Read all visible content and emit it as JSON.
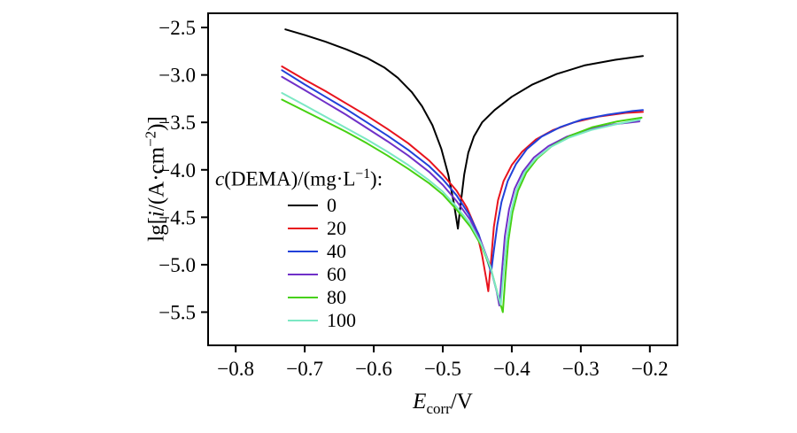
{
  "chart_data": {
    "type": "line",
    "title": "",
    "xlabel": "E_corr/V",
    "ylabel": "lg[i/(A·cm−2)]",
    "legend_title": "c(DEMA)/(mg·L−1):",
    "legend_position": "inside-left",
    "grid": false,
    "xlim": [
      -0.84,
      -0.16
    ],
    "ylim": [
      -5.85,
      -2.35
    ],
    "x_ticks": [
      -0.8,
      -0.7,
      -0.6,
      -0.5,
      -0.4,
      -0.3,
      -0.2
    ],
    "y_ticks": [
      -2.5,
      -3.0,
      -3.5,
      -4.0,
      -4.5,
      -5.0,
      -5.5
    ],
    "series": [
      {
        "name": "0",
        "color": "#000000",
        "points": [
          [
            -0.728,
            -2.52
          ],
          [
            -0.7,
            -2.58
          ],
          [
            -0.67,
            -2.65
          ],
          [
            -0.64,
            -2.73
          ],
          [
            -0.61,
            -2.82
          ],
          [
            -0.585,
            -2.92
          ],
          [
            -0.565,
            -3.03
          ],
          [
            -0.545,
            -3.18
          ],
          [
            -0.53,
            -3.33
          ],
          [
            -0.515,
            -3.53
          ],
          [
            -0.502,
            -3.78
          ],
          [
            -0.492,
            -4.05
          ],
          [
            -0.484,
            -4.35
          ],
          [
            -0.478,
            -4.62
          ],
          [
            -0.474,
            -4.35
          ],
          [
            -0.469,
            -4.05
          ],
          [
            -0.463,
            -3.82
          ],
          [
            -0.455,
            -3.65
          ],
          [
            -0.443,
            -3.5
          ],
          [
            -0.425,
            -3.37
          ],
          [
            -0.4,
            -3.23
          ],
          [
            -0.37,
            -3.1
          ],
          [
            -0.335,
            -2.99
          ],
          [
            -0.295,
            -2.9
          ],
          [
            -0.25,
            -2.84
          ],
          [
            -0.21,
            -2.8
          ]
        ]
      },
      {
        "name": "20",
        "color": "#e8131d",
        "points": [
          [
            -0.733,
            -2.91
          ],
          [
            -0.7,
            -3.05
          ],
          [
            -0.67,
            -3.17
          ],
          [
            -0.64,
            -3.3
          ],
          [
            -0.61,
            -3.43
          ],
          [
            -0.58,
            -3.57
          ],
          [
            -0.55,
            -3.72
          ],
          [
            -0.52,
            -3.9
          ],
          [
            -0.5,
            -4.05
          ],
          [
            -0.48,
            -4.22
          ],
          [
            -0.465,
            -4.4
          ],
          [
            -0.452,
            -4.62
          ],
          [
            -0.443,
            -4.9
          ],
          [
            -0.437,
            -5.15
          ],
          [
            -0.434,
            -5.28
          ],
          [
            -0.43,
            -4.95
          ],
          [
            -0.426,
            -4.6
          ],
          [
            -0.42,
            -4.32
          ],
          [
            -0.412,
            -4.12
          ],
          [
            -0.4,
            -3.95
          ],
          [
            -0.385,
            -3.81
          ],
          [
            -0.365,
            -3.68
          ],
          [
            -0.34,
            -3.58
          ],
          [
            -0.31,
            -3.5
          ],
          [
            -0.275,
            -3.44
          ],
          [
            -0.235,
            -3.4
          ],
          [
            -0.21,
            -3.39
          ]
        ]
      },
      {
        "name": "40",
        "color": "#2141d9",
        "points": [
          [
            -0.733,
            -2.95
          ],
          [
            -0.7,
            -3.1
          ],
          [
            -0.67,
            -3.23
          ],
          [
            -0.64,
            -3.36
          ],
          [
            -0.61,
            -3.5
          ],
          [
            -0.58,
            -3.64
          ],
          [
            -0.55,
            -3.79
          ],
          [
            -0.52,
            -3.96
          ],
          [
            -0.5,
            -4.1
          ],
          [
            -0.48,
            -4.27
          ],
          [
            -0.462,
            -4.47
          ],
          [
            -0.448,
            -4.68
          ],
          [
            -0.438,
            -4.9
          ],
          [
            -0.43,
            -5.08
          ],
          [
            -0.426,
            -4.85
          ],
          [
            -0.421,
            -4.58
          ],
          [
            -0.415,
            -4.34
          ],
          [
            -0.406,
            -4.12
          ],
          [
            -0.394,
            -3.94
          ],
          [
            -0.378,
            -3.78
          ],
          [
            -0.357,
            -3.65
          ],
          [
            -0.33,
            -3.55
          ],
          [
            -0.298,
            -3.47
          ],
          [
            -0.262,
            -3.42
          ],
          [
            -0.225,
            -3.38
          ],
          [
            -0.21,
            -3.37
          ]
        ]
      },
      {
        "name": "60",
        "color": "#7030c8",
        "points": [
          [
            -0.733,
            -3.02
          ],
          [
            -0.7,
            -3.16
          ],
          [
            -0.67,
            -3.29
          ],
          [
            -0.64,
            -3.42
          ],
          [
            -0.61,
            -3.56
          ],
          [
            -0.58,
            -3.7
          ],
          [
            -0.55,
            -3.85
          ],
          [
            -0.52,
            -4.02
          ],
          [
            -0.5,
            -4.16
          ],
          [
            -0.48,
            -4.33
          ],
          [
            -0.46,
            -4.53
          ],
          [
            -0.445,
            -4.75
          ],
          [
            -0.432,
            -5.0
          ],
          [
            -0.422,
            -5.28
          ],
          [
            -0.418,
            -5.43
          ],
          [
            -0.414,
            -5.05
          ],
          [
            -0.41,
            -4.7
          ],
          [
            -0.404,
            -4.42
          ],
          [
            -0.396,
            -4.2
          ],
          [
            -0.384,
            -4.02
          ],
          [
            -0.368,
            -3.87
          ],
          [
            -0.347,
            -3.75
          ],
          [
            -0.32,
            -3.65
          ],
          [
            -0.288,
            -3.57
          ],
          [
            -0.252,
            -3.52
          ],
          [
            -0.215,
            -3.49
          ]
        ]
      },
      {
        "name": "80",
        "color": "#46d111",
        "points": [
          [
            -0.733,
            -3.26
          ],
          [
            -0.7,
            -3.38
          ],
          [
            -0.67,
            -3.49
          ],
          [
            -0.64,
            -3.6
          ],
          [
            -0.61,
            -3.72
          ],
          [
            -0.58,
            -3.85
          ],
          [
            -0.55,
            -3.99
          ],
          [
            -0.52,
            -4.14
          ],
          [
            -0.5,
            -4.26
          ],
          [
            -0.48,
            -4.42
          ],
          [
            -0.46,
            -4.6
          ],
          [
            -0.444,
            -4.8
          ],
          [
            -0.43,
            -5.05
          ],
          [
            -0.419,
            -5.35
          ],
          [
            -0.413,
            -5.5
          ],
          [
            -0.409,
            -5.1
          ],
          [
            -0.405,
            -4.75
          ],
          [
            -0.399,
            -4.45
          ],
          [
            -0.391,
            -4.22
          ],
          [
            -0.379,
            -4.03
          ],
          [
            -0.363,
            -3.88
          ],
          [
            -0.342,
            -3.75
          ],
          [
            -0.315,
            -3.64
          ],
          [
            -0.283,
            -3.55
          ],
          [
            -0.247,
            -3.49
          ],
          [
            -0.212,
            -3.45
          ]
        ]
      },
      {
        "name": "100",
        "color": "#7ce8c4",
        "points": [
          [
            -0.733,
            -3.19
          ],
          [
            -0.7,
            -3.32
          ],
          [
            -0.67,
            -3.44
          ],
          [
            -0.64,
            -3.56
          ],
          [
            -0.61,
            -3.68
          ],
          [
            -0.58,
            -3.81
          ],
          [
            -0.55,
            -3.95
          ],
          [
            -0.52,
            -4.11
          ],
          [
            -0.5,
            -4.23
          ],
          [
            -0.48,
            -4.39
          ],
          [
            -0.46,
            -4.57
          ],
          [
            -0.445,
            -4.77
          ],
          [
            -0.431,
            -5.02
          ],
          [
            -0.421,
            -5.3
          ],
          [
            -0.416,
            -5.42
          ],
          [
            -0.412,
            -5.08
          ],
          [
            -0.407,
            -4.72
          ],
          [
            -0.401,
            -4.44
          ],
          [
            -0.393,
            -4.21
          ],
          [
            -0.381,
            -4.02
          ],
          [
            -0.365,
            -3.88
          ],
          [
            -0.344,
            -3.76
          ],
          [
            -0.317,
            -3.66
          ],
          [
            -0.285,
            -3.58
          ],
          [
            -0.249,
            -3.52
          ],
          [
            -0.214,
            -3.47
          ]
        ]
      }
    ]
  },
  "labels": {
    "ylabel_parts": {
      "p1": "lg[",
      "i": "i",
      "p2": "/(A·cm",
      "sup": "−2",
      "p3": ")]"
    },
    "xlabel_parts": {
      "e": "E",
      "sub": "corr",
      "suffix": "/V"
    },
    "legend_title_parts": {
      "c": "c",
      "p1": "(DEMA)/(mg·L",
      "sup": "−1",
      "p2": "):"
    }
  }
}
